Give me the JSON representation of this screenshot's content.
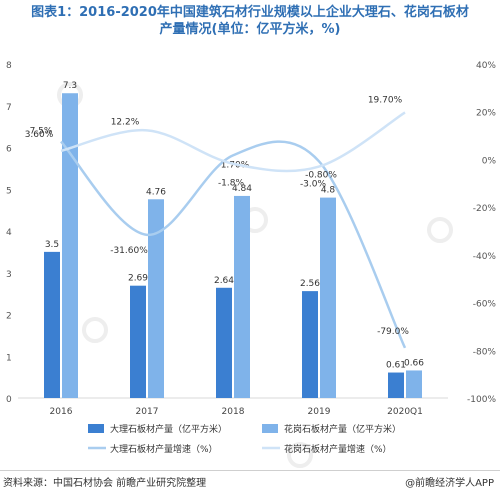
{
  "title_line1": "图表1：2016-2020年中国建筑石材行业规模以上企业大理石、花岗石板材",
  "title_line2": "产量情况(单位：亿平方米，%)",
  "source": "资料来源：中国石材协会 前瞻产业研究院整理",
  "brand": "@前瞻经济学人APP",
  "colors": {
    "marble_bar": "#3b7fd1",
    "granite_bar": "#7fb3ea",
    "marble_line": "#a9cdef",
    "granite_line": "#cfe3f7"
  },
  "chart_data": {
    "type": "bar+line",
    "categories": [
      "2016",
      "2017",
      "2018",
      "2019",
      "2020Q1"
    ],
    "left_axis": {
      "min": 0,
      "max": 8,
      "ticks": [
        "0",
        "1",
        "2",
        "3",
        "4",
        "5",
        "6",
        "7",
        "8"
      ]
    },
    "right_axis": {
      "min": -100,
      "max": 40,
      "ticks": [
        "-100%",
        "-80%",
        "-60%",
        "-40%",
        "-20%",
        "0%",
        "20%",
        "40%"
      ]
    },
    "series": [
      {
        "name": "大理石板材产量（亿平方米）",
        "kind": "bar",
        "axis": "left",
        "values": [
          3.5,
          2.69,
          2.64,
          2.56,
          0.61
        ],
        "labels": [
          "3.5",
          "2.69",
          "2.64",
          "2.56",
          "0.61"
        ]
      },
      {
        "name": "花岗石板材产量（亿平方米）",
        "kind": "bar",
        "axis": "left",
        "values": [
          7.3,
          4.76,
          4.84,
          4.8,
          0.66
        ],
        "labels": [
          "7.3",
          "4.76",
          "4.84",
          "4.8",
          "0.66"
        ]
      },
      {
        "name": "大理石板材产量增速（%）",
        "kind": "line",
        "axis": "right",
        "values": [
          7.5,
          -31.6,
          1.7,
          -0.8,
          -79.0
        ],
        "labels": [
          "7.5%",
          "-31.60%",
          "1.70%",
          "-0.80%",
          "-79.0%"
        ]
      },
      {
        "name": "花岗石板材产量增速（%）",
        "kind": "line",
        "axis": "right",
        "values": [
          3.6,
          12.2,
          -1.8,
          -3.0,
          19.7
        ],
        "labels": [
          "3.60%",
          "12.2%",
          "-1.8%",
          "-3.0%",
          "19.70%"
        ]
      }
    ],
    "legend_position": "bottom",
    "grid": false
  }
}
